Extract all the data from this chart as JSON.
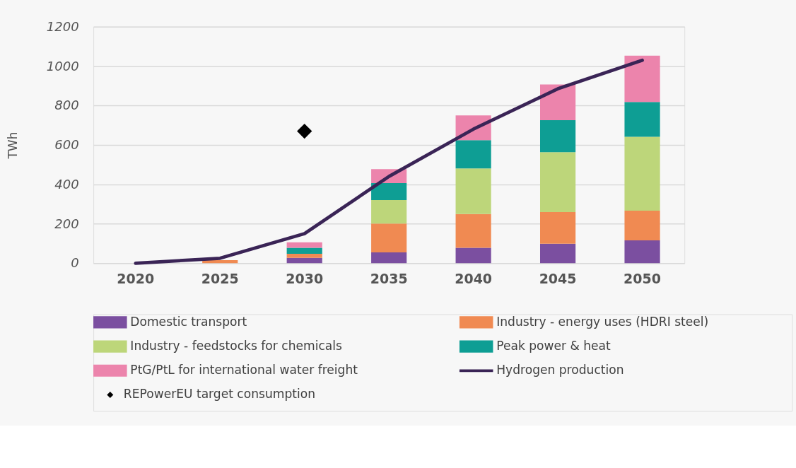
{
  "chart_data": {
    "type": "bar",
    "stacked": true,
    "ylabel": "TWh",
    "categories": [
      "2020",
      "2025",
      "2030",
      "2035",
      "2040",
      "2045",
      "2050"
    ],
    "series": [
      {
        "name": "Domestic transport",
        "color": "#7b4fa0",
        "values": [
          0,
          0,
          27,
          55,
          78,
          99,
          116
        ]
      },
      {
        "name": "Industry - energy uses (HDRI steel)",
        "color": "#f08a52",
        "values": [
          0,
          15,
          21,
          146,
          171,
          160,
          150
        ]
      },
      {
        "name": "Industry - feedstocks for chemicals",
        "color": "#bdd67a",
        "values": [
          0,
          0,
          0,
          119,
          232,
          304,
          375
        ]
      },
      {
        "name": "Peak power & heat",
        "color": "#0e9e94",
        "values": [
          0,
          0,
          30,
          86,
          143,
          163,
          177
        ]
      },
      {
        "name": "PtG/PtL for international water freight",
        "color": "#ec84ac",
        "values": [
          0,
          0,
          28,
          71,
          126,
          181,
          235
        ]
      },
      {
        "name": "Hydrogen production",
        "type": "line",
        "color": "#3a2456",
        "values": [
          0,
          25,
          150,
          440,
          680,
          885,
          1030
        ]
      },
      {
        "name": "REPowerEU target consumption",
        "type": "scatter",
        "marker": "diamond",
        "color": "#000000",
        "values": [
          null,
          null,
          670,
          null,
          null,
          null,
          null
        ]
      }
    ],
    "ylim": [
      0,
      1200
    ],
    "yticks": [
      0,
      200,
      400,
      600,
      800,
      1000,
      1200
    ],
    "grid": "y",
    "legend": "bottom"
  }
}
